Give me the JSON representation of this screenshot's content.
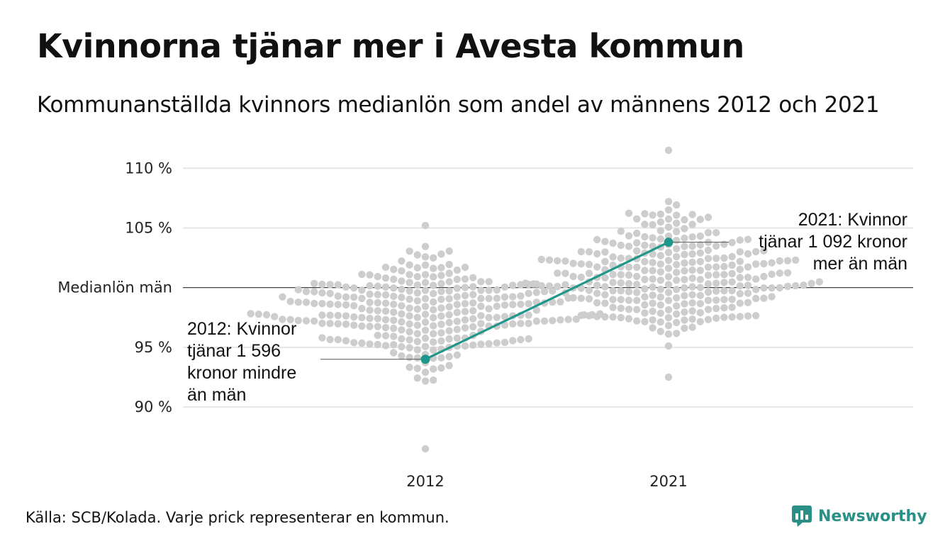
{
  "title": "Kvinnorna tjänar mer i Avesta kommun",
  "subtitle": "Kommunanställda kvinnors medianlön som andel av männens 2012 och 2021",
  "source": "Källa: SCB/Kolada. Varje prick representerar en kommun.",
  "brand": "Newsworthy",
  "colors": {
    "highlight": "#1f978a",
    "dots": "#cdcdcd",
    "grid": "#e6e6e6",
    "baseline": "#444444"
  },
  "chart_data": {
    "type": "scatter",
    "categories": [
      "2012",
      "2021"
    ],
    "y_ticks": [
      {
        "value": 90,
        "label": "90 %"
      },
      {
        "value": 95,
        "label": "95 %"
      },
      {
        "value": 100,
        "label": "Medianlön män"
      },
      {
        "value": 105,
        "label": "105 %"
      },
      {
        "value": 110,
        "label": "110 %"
      }
    ],
    "ylim": [
      86.5,
      111.5
    ],
    "highlight": {
      "name": "Avesta",
      "values": [
        94.0,
        103.8
      ]
    },
    "distribution": {
      "2012": {
        "min": 86.5,
        "max": 105.2,
        "center": 98.0,
        "spread": 2.2,
        "count": 290
      },
      "2021": {
        "min": 92.5,
        "max": 111.5,
        "center": 101.0,
        "spread": 2.4,
        "count": 290
      }
    },
    "annotations": [
      {
        "year": "2012",
        "lines": [
          "2012: Kvinnor",
          "tjänar 1 596",
          "kronor mindre",
          "än män"
        ]
      },
      {
        "year": "2021",
        "lines": [
          "2021: Kvinnor",
          "tjänar 1 092 kronor",
          "mer än män"
        ]
      }
    ]
  }
}
